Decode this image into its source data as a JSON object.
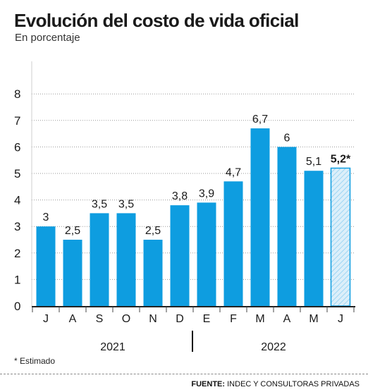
{
  "title": "Evolución del costo de vida oficial",
  "subtitle": "En porcentaje",
  "note": "* Estimado",
  "source": {
    "label": "FUENTE:",
    "text": "INDEC Y CONSULTORAS PRIVADAS"
  },
  "colors": {
    "bar": "#0e9de0",
    "estimated_fill": "#dceffa",
    "estimated_stroke": "#0e9de0",
    "grid": "#9a9a9a",
    "text": "#1a1a1a"
  },
  "chart_data": {
    "type": "bar",
    "title": "Evolución del costo de vida oficial",
    "subtitle": "En porcentaje",
    "categories": [
      "J",
      "A",
      "S",
      "O",
      "N",
      "D",
      "E",
      "F",
      "M",
      "A",
      "M",
      "J"
    ],
    "values": [
      3,
      2.5,
      3.5,
      3.5,
      2.5,
      3.8,
      3.9,
      4.7,
      6.7,
      6,
      5.1,
      5.2
    ],
    "labels": [
      "3",
      "2,5",
      "3,5",
      "3,5",
      "2,5",
      "3,8",
      "3,9",
      "4,7",
      "6,7",
      "6",
      "5,1",
      "5,2*"
    ],
    "estimated": [
      false,
      false,
      false,
      false,
      false,
      false,
      false,
      false,
      false,
      false,
      false,
      true
    ],
    "year_groups": [
      {
        "label": "2021",
        "from": 0,
        "to": 5
      },
      {
        "label": "2022",
        "from": 6,
        "to": 11
      }
    ],
    "yticks": [
      0,
      1,
      2,
      3,
      4,
      5,
      6,
      7,
      8
    ],
    "ylim": [
      0,
      8
    ],
    "xlabel": "",
    "ylabel": "",
    "grid": true,
    "legend": "none"
  }
}
